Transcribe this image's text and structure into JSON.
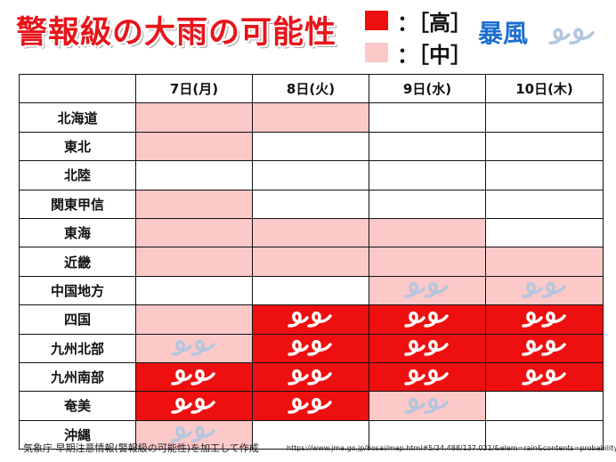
{
  "title": "警報級の大雨の可能性",
  "legend": [
    {
      "label": "：［高］",
      "color": "#ee1010"
    },
    {
      "label": "：［中］",
      "color": "#fcc8c8"
    }
  ],
  "storm_legend": {
    "label": "暴風",
    "icon": "storm-icon"
  },
  "colors": {
    "high": "#ee1010",
    "mid": "#fcc8c8",
    "none": "#ffffff"
  },
  "table": {
    "columns": [
      "7日(月)",
      "8日(火)",
      "9日(水)",
      "10日(木)"
    ],
    "rows": [
      {
        "region": "北海道",
        "cells": [
          {
            "rain": "mid"
          },
          {
            "rain": "mid"
          },
          {
            "rain": "none"
          },
          {
            "rain": "none"
          }
        ]
      },
      {
        "region": "東北",
        "cells": [
          {
            "rain": "mid"
          },
          {
            "rain": "none"
          },
          {
            "rain": "none"
          },
          {
            "rain": "none"
          }
        ]
      },
      {
        "region": "北陸",
        "cells": [
          {
            "rain": "none"
          },
          {
            "rain": "none"
          },
          {
            "rain": "none"
          },
          {
            "rain": "none"
          }
        ]
      },
      {
        "region": "関東甲信",
        "cells": [
          {
            "rain": "mid"
          },
          {
            "rain": "none"
          },
          {
            "rain": "none"
          },
          {
            "rain": "none"
          }
        ]
      },
      {
        "region": "東海",
        "cells": [
          {
            "rain": "mid"
          },
          {
            "rain": "mid"
          },
          {
            "rain": "mid"
          },
          {
            "rain": "none"
          }
        ]
      },
      {
        "region": "近畿",
        "cells": [
          {
            "rain": "mid"
          },
          {
            "rain": "mid"
          },
          {
            "rain": "mid"
          },
          {
            "rain": "mid"
          }
        ]
      },
      {
        "region": "中国地方",
        "cells": [
          {
            "rain": "none"
          },
          {
            "rain": "none"
          },
          {
            "rain": "mid",
            "wind": "mid"
          },
          {
            "rain": "mid",
            "wind": "mid"
          }
        ]
      },
      {
        "region": "四国",
        "cells": [
          {
            "rain": "mid"
          },
          {
            "rain": "high",
            "wind": "high"
          },
          {
            "rain": "high",
            "wind": "high"
          },
          {
            "rain": "high",
            "wind": "high"
          }
        ]
      },
      {
        "region": "九州北部",
        "cells": [
          {
            "rain": "mid",
            "wind": "mid"
          },
          {
            "rain": "high",
            "wind": "high"
          },
          {
            "rain": "high",
            "wind": "high"
          },
          {
            "rain": "high",
            "wind": "high"
          }
        ]
      },
      {
        "region": "九州南部",
        "cells": [
          {
            "rain": "high",
            "wind": "high"
          },
          {
            "rain": "high",
            "wind": "high"
          },
          {
            "rain": "high",
            "wind": "high"
          },
          {
            "rain": "high",
            "wind": "high"
          }
        ]
      },
      {
        "region": "奄美",
        "cells": [
          {
            "rain": "high",
            "wind": "high"
          },
          {
            "rain": "high",
            "wind": "high"
          },
          {
            "rain": "mid",
            "wind": "mid"
          },
          {
            "rain": "none"
          }
        ]
      },
      {
        "region": "沖縄",
        "cells": [
          {
            "rain": "mid",
            "wind": "mid"
          },
          {
            "rain": "none"
          },
          {
            "rain": "none"
          },
          {
            "rain": "none"
          }
        ]
      }
    ]
  },
  "footer": {
    "credit": "気象庁 早期注意情報(警報級の可能性)を加工して作成",
    "url": "https://www.jma.go.jp/bosai/map.html#5/34.488/137.021/&elem=rain&contents=probability"
  }
}
